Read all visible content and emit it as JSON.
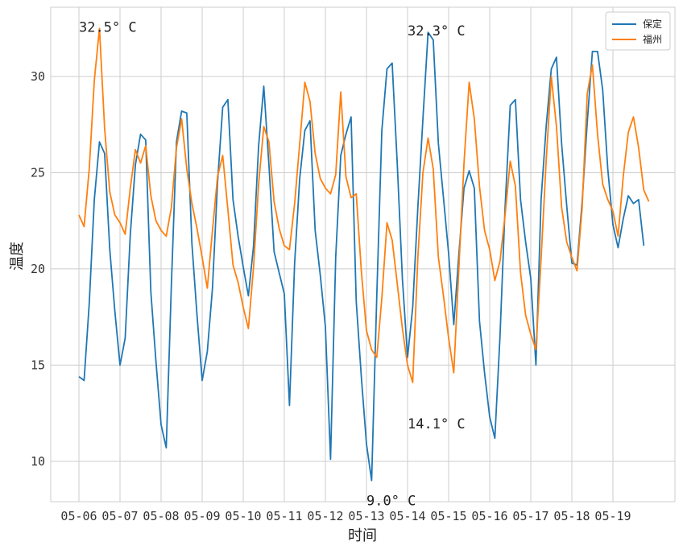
{
  "chart_data": {
    "type": "line",
    "title": "",
    "xlabel": "时间",
    "ylabel": "温度",
    "x_tick_labels": [
      "05-06",
      "05-07",
      "05-08",
      "05-09",
      "05-10",
      "05-11",
      "05-12",
      "05-13",
      "05-14",
      "05-15",
      "05-16",
      "05-17",
      "05-18",
      "05-19"
    ],
    "ylim": [
      7.9,
      33.6
    ],
    "y_ticks": [
      10,
      15,
      20,
      25,
      30
    ],
    "grid": true,
    "legend_position": "top-right",
    "x_step_days": 0.125,
    "series": [
      {
        "name": "保定",
        "color": "#1f77b4",
        "values": [
          14.4,
          14.2,
          18.2,
          23.6,
          26.6,
          26.0,
          21.0,
          17.8,
          15.0,
          16.4,
          21.8,
          25.4,
          27.0,
          26.7,
          18.8,
          15.2,
          11.9,
          10.7,
          19.2,
          26.6,
          28.2,
          28.1,
          21.3,
          17.6,
          14.2,
          15.7,
          19.0,
          24.5,
          28.4,
          28.8,
          23.6,
          21.7,
          20.1,
          18.6,
          21.2,
          26.4,
          29.5,
          25.4,
          20.9,
          19.8,
          18.7,
          12.9,
          20.3,
          24.7,
          27.2,
          27.7,
          22.0,
          19.7,
          17.0,
          10.1,
          20.6,
          25.9,
          27.0,
          27.9,
          18.3,
          14.4,
          10.9,
          9.0,
          18.6,
          27.2,
          30.4,
          30.7,
          25.4,
          19.5,
          15.4,
          18.0,
          23.2,
          27.8,
          32.3,
          31.9,
          26.5,
          23.7,
          20.8,
          17.1,
          20.8,
          24.2,
          25.1,
          24.2,
          17.3,
          14.6,
          12.3,
          11.2,
          16.5,
          23.2,
          28.5,
          28.8,
          23.6,
          21.4,
          19.5,
          15.0,
          23.6,
          27.4,
          30.4,
          31.0,
          26.5,
          23.3,
          20.3,
          20.2,
          23.5,
          27.6,
          31.3,
          31.3,
          29.3,
          25.2,
          22.3,
          21.1,
          22.6,
          23.8,
          23.4,
          23.6,
          21.2
        ],
        "annotations": [
          {
            "text": "9.0° C",
            "x": "05-13",
            "y": 9.0
          },
          {
            "text": "32.3° C",
            "x": "05-14",
            "y": 32.3
          }
        ]
      },
      {
        "name": "福州",
        "color": "#ff7f0e",
        "values": [
          22.8,
          22.2,
          25.2,
          29.8,
          32.5,
          27.3,
          24.0,
          22.8,
          22.4,
          21.8,
          24.2,
          26.2,
          25.5,
          26.4,
          23.8,
          22.5,
          22.0,
          21.7,
          23.2,
          26.3,
          27.8,
          25.2,
          23.4,
          22.1,
          20.6,
          19.0,
          22.0,
          24.8,
          25.9,
          23.1,
          20.2,
          19.3,
          18.0,
          16.9,
          20.1,
          24.4,
          27.4,
          26.6,
          23.5,
          22.1,
          21.2,
          21.0,
          23.4,
          26.5,
          29.7,
          28.7,
          26.0,
          24.7,
          24.2,
          23.9,
          24.9,
          29.2,
          24.8,
          23.7,
          23.9,
          19.9,
          16.8,
          15.8,
          15.4,
          18.5,
          22.4,
          21.5,
          19.2,
          16.9,
          15.0,
          14.1,
          20.6,
          25.0,
          26.8,
          25.2,
          20.6,
          18.6,
          16.4,
          14.6,
          20.1,
          25.5,
          29.7,
          27.8,
          24.3,
          22.0,
          21.0,
          19.4,
          20.4,
          22.8,
          25.6,
          24.3,
          19.8,
          17.6,
          16.6,
          15.8,
          20.5,
          25.6,
          30.0,
          27.4,
          23.2,
          21.4,
          20.6,
          19.9,
          23.2,
          29.1,
          30.6,
          27.0,
          24.4,
          23.6,
          23.0,
          21.7,
          24.8,
          27.1,
          27.9,
          26.3,
          24.1,
          23.5
        ],
        "annotations": [
          {
            "text": "32.5° C",
            "x": "05-06",
            "y": 32.5
          },
          {
            "text": "14.1° C",
            "x": "05-14",
            "y": 14.1
          }
        ]
      }
    ]
  }
}
